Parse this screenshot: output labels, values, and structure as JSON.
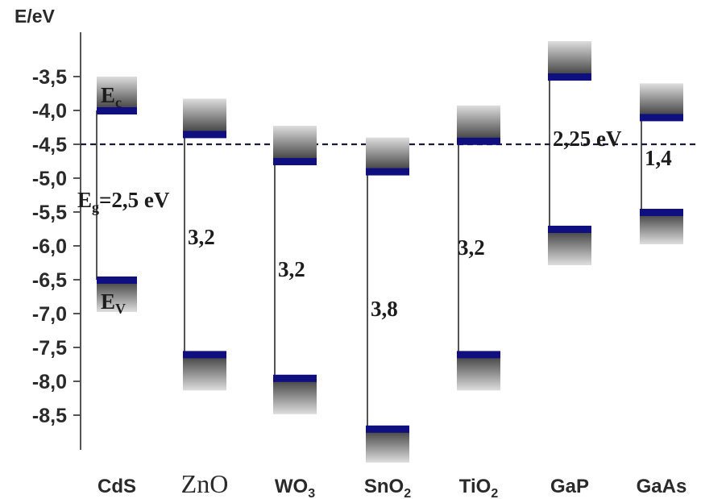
{
  "chart_data": {
    "type": "band-diagram",
    "ylabel": "E/eV",
    "ylim": [
      -9.0,
      -3.0
    ],
    "yticks": [
      "-3,5",
      "-4,0",
      "-4,5",
      "-5,0",
      "-5,5",
      "-6,0",
      "-6,5",
      "-7,0",
      "-7,5",
      "-8,0",
      "-8,5"
    ],
    "ytick_values": [
      -3.5,
      -4.0,
      -4.5,
      -5.0,
      -5.5,
      -6.0,
      -6.5,
      -7.0,
      -7.5,
      -8.0,
      -8.5
    ],
    "reference_line": {
      "value": -4.5,
      "style": "dashed"
    },
    "materials": [
      {
        "name": "CdS",
        "sub": "",
        "serif": false,
        "cb": -4.0,
        "vb": -6.5,
        "gap_label": "Eg=2,5 eV",
        "gap_main": "E",
        "gap_sub": "g",
        "gap_rest": "=2,5 eV",
        "cb_label_main": "E",
        "cb_label_sub": "c",
        "vb_label_main": "E",
        "vb_label_sub": "V"
      },
      {
        "name": "ZnO",
        "sub": "",
        "serif": true,
        "cb": -4.35,
        "vb": -7.6,
        "gap_label": "3,2"
      },
      {
        "name": "WO",
        "sub": "3",
        "serif": false,
        "cb": -4.75,
        "vb": -7.95,
        "gap_label": "3,2"
      },
      {
        "name": "SnO",
        "sub": "2",
        "serif": false,
        "cb": -4.9,
        "vb": -8.7,
        "gap_label": "3,8"
      },
      {
        "name": "TiO",
        "sub": "2",
        "serif": false,
        "cb": -4.45,
        "vb": -7.6,
        "gap_label": "3,2"
      },
      {
        "name": "GaP",
        "sub": "",
        "serif": false,
        "cb": -3.5,
        "vb": -5.75,
        "gap_label": "2,25 eV"
      },
      {
        "name": "GaAs",
        "sub": "",
        "serif": false,
        "cb": -4.1,
        "vb": -5.5,
        "gap_label": "1,4"
      }
    ],
    "colors": {
      "band_edge": "#0f0f80",
      "axis": "#555555",
      "dash": "#1a1a3a",
      "band_dark": "#3a3a3a",
      "band_light": "#d8d8d8"
    }
  }
}
